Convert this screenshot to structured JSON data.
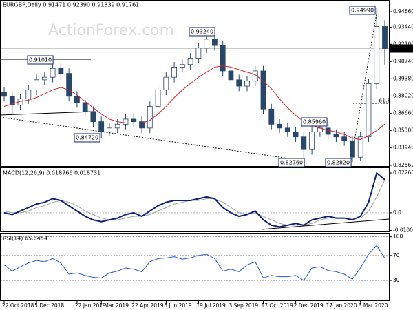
{
  "chart_data": [
    {
      "type": "candlestick",
      "header": "EURGBP,Daily 0.91471 0.92390 0.91339 0.91761",
      "watermark": "ActionForex.com",
      "last_price_label": "0.91761",
      "annotations": [
        "0.91010",
        "0.84720",
        "0.93240",
        "0.82760",
        "0.85960",
        "0.82820",
        "0.94990",
        "61.8"
      ],
      "categories": [
        "22 Oct 2018",
        null,
        null,
        null,
        "5 Dec 2018",
        null,
        null,
        null,
        null,
        "22 Jan 2019",
        null,
        null,
        "7 Mar 2019",
        null,
        null,
        null,
        "22 Apr 2019",
        null,
        null,
        null,
        "5 Jun 2019",
        null,
        null,
        null,
        "19 Jul 2019",
        null,
        null,
        null,
        "3 Sep 2019",
        null,
        null,
        null,
        "17 Oct 2019",
        null,
        null,
        null,
        "2 Dec 2019",
        null,
        null,
        null,
        "17 Jan 2020",
        null,
        null,
        null,
        "3 Mar 2020",
        null,
        null,
        null
      ],
      "open": [
        0.883,
        0.88,
        0.873,
        0.878,
        0.885,
        0.893,
        0.895,
        0.902,
        0.898,
        0.88,
        0.875,
        0.868,
        0.86,
        0.852,
        0.855,
        0.858,
        0.862,
        0.86,
        0.855,
        0.872,
        0.885,
        0.895,
        0.903,
        0.905,
        0.91,
        0.918,
        0.925,
        0.92,
        0.9,
        0.893,
        0.888,
        0.892,
        0.9,
        0.87,
        0.858,
        0.855,
        0.852,
        0.848,
        0.838,
        0.852,
        0.855,
        0.85,
        0.848,
        0.845,
        0.832,
        0.848,
        0.89,
        0.935
      ],
      "high": [
        0.887,
        0.884,
        0.882,
        0.889,
        0.897,
        0.899,
        0.9101,
        0.906,
        0.902,
        0.884,
        0.879,
        0.872,
        0.864,
        0.859,
        0.862,
        0.866,
        0.866,
        0.864,
        0.876,
        0.889,
        0.899,
        0.907,
        0.909,
        0.914,
        0.922,
        0.9324,
        0.929,
        0.924,
        0.904,
        0.897,
        0.896,
        0.904,
        0.904,
        0.874,
        0.862,
        0.859,
        0.856,
        0.852,
        0.8596,
        0.859,
        0.859,
        0.854,
        0.852,
        0.849,
        0.852,
        0.894,
        0.9499,
        0.94
      ],
      "low": [
        0.876,
        0.866,
        0.869,
        0.874,
        0.881,
        0.889,
        0.891,
        0.894,
        0.876,
        0.871,
        0.864,
        0.856,
        0.8472,
        0.849,
        0.851,
        0.854,
        0.856,
        0.851,
        0.851,
        0.868,
        0.881,
        0.891,
        0.899,
        0.901,
        0.906,
        0.914,
        0.916,
        0.896,
        0.889,
        0.884,
        0.884,
        0.888,
        0.866,
        0.854,
        0.851,
        0.848,
        0.844,
        0.8276,
        0.834,
        0.848,
        0.846,
        0.844,
        0.841,
        0.8282,
        0.829,
        0.844,
        0.886,
        0.905
      ],
      "close": [
        0.88,
        0.873,
        0.878,
        0.885,
        0.893,
        0.895,
        0.902,
        0.898,
        0.88,
        0.875,
        0.868,
        0.86,
        0.852,
        0.855,
        0.858,
        0.862,
        0.86,
        0.855,
        0.872,
        0.885,
        0.895,
        0.903,
        0.905,
        0.91,
        0.918,
        0.925,
        0.92,
        0.9,
        0.893,
        0.888,
        0.892,
        0.9,
        0.87,
        0.858,
        0.855,
        0.852,
        0.848,
        0.838,
        0.852,
        0.855,
        0.85,
        0.848,
        0.845,
        0.832,
        0.848,
        0.89,
        0.935,
        0.91761
      ],
      "ma": {
        "color": "#e02020",
        "values": [
          0.872,
          0.874,
          0.876,
          0.877,
          0.879,
          0.882,
          0.885,
          0.887,
          0.885,
          0.881,
          0.876,
          0.871,
          0.866,
          0.862,
          0.86,
          0.859,
          0.859,
          0.859,
          0.861,
          0.866,
          0.872,
          0.879,
          0.885,
          0.89,
          0.895,
          0.899,
          0.903,
          0.904,
          0.903,
          0.901,
          0.899,
          0.897,
          0.892,
          0.886,
          0.878,
          0.871,
          0.865,
          0.86,
          0.857,
          0.855,
          0.853,
          0.852,
          0.85,
          0.847,
          0.846,
          0.849,
          0.853,
          0.858
        ]
      },
      "color": "#27476b",
      "ylim": [
        0.8256,
        0.9548
      ],
      "yticks": [
        {
          "value": 0.9466,
          "label": "0.94660"
        },
        {
          "value": 0.9344,
          "label": "0.93440"
        },
        {
          "value": 0.921,
          "label": "0.92100"
        },
        {
          "value": 0.9074,
          "label": "0.90740"
        },
        {
          "value": 0.8938,
          "label": "0.89380"
        },
        {
          "value": 0.8802,
          "label": "0.88020"
        },
        {
          "value": 0.8666,
          "label": "0.86660"
        },
        {
          "value": 0.853,
          "label": "0.85300"
        },
        {
          "value": 0.8394,
          "label": "0.83940"
        },
        0.82562
      ]
    },
    {
      "type": "line",
      "title": "MACD(12,26,9) 0.018766 0.018731",
      "series": [
        {
          "name": "MACD",
          "color": "#0a1f7a",
          "values": [
            0.0,
            -0.001,
            0.001,
            0.003,
            0.005,
            0.006,
            0.008,
            0.007,
            0.004,
            0.001,
            -0.002,
            -0.004,
            -0.005,
            -0.004,
            -0.003,
            -0.001,
            0.0,
            -0.002,
            0.001,
            0.004,
            0.006,
            0.007,
            0.007,
            0.007,
            0.008,
            0.009,
            0.008,
            0.003,
            0.0,
            -0.002,
            -0.001,
            0.001,
            -0.004,
            -0.007,
            -0.008,
            -0.007,
            -0.006,
            -0.007,
            -0.004,
            -0.003,
            -0.002,
            -0.003,
            -0.003,
            -0.004,
            -0.002,
            0.006,
            0.0226,
            0.0188
          ]
        },
        {
          "name": "Signal",
          "color": "#a0a0a0",
          "values": [
            0.001,
            0.0,
            0.0,
            0.001,
            0.003,
            0.004,
            0.006,
            0.007,
            0.006,
            0.004,
            0.001,
            -0.001,
            -0.003,
            -0.004,
            -0.004,
            -0.003,
            -0.002,
            -0.002,
            -0.001,
            0.001,
            0.003,
            0.005,
            0.006,
            0.007,
            0.007,
            0.008,
            0.008,
            0.006,
            0.003,
            0.0,
            -0.001,
            0.0,
            -0.002,
            -0.004,
            -0.006,
            -0.007,
            -0.007,
            -0.007,
            -0.006,
            -0.004,
            -0.003,
            -0.003,
            -0.003,
            -0.003,
            -0.003,
            0.001,
            0.009,
            0.0187
          ]
        }
      ],
      "ylim": [
        -0.0106,
        0.0254
      ],
      "yticks": [
        0.022662,
        {
          "value": 0,
          "label": "0.0"
        },
        -0.010052
      ]
    },
    {
      "type": "line",
      "title": "RSI(14) 65.6454",
      "series": [
        {
          "name": "RSI",
          "color": "#1e5ad8",
          "values": [
            55,
            45,
            52,
            58,
            62,
            60,
            65,
            58,
            40,
            42,
            38,
            35,
            34,
            42,
            45,
            50,
            48,
            44,
            60,
            65,
            66,
            68,
            64,
            66,
            70,
            72,
            65,
            45,
            48,
            44,
            55,
            60,
            34,
            38,
            36,
            36,
            38,
            30,
            50,
            52,
            46,
            44,
            40,
            32,
            50,
            72,
            86,
            65.6
          ]
        }
      ],
      "ylim": [
        -3,
        104
      ],
      "yticks": [
        100,
        70,
        30
      ]
    }
  ]
}
